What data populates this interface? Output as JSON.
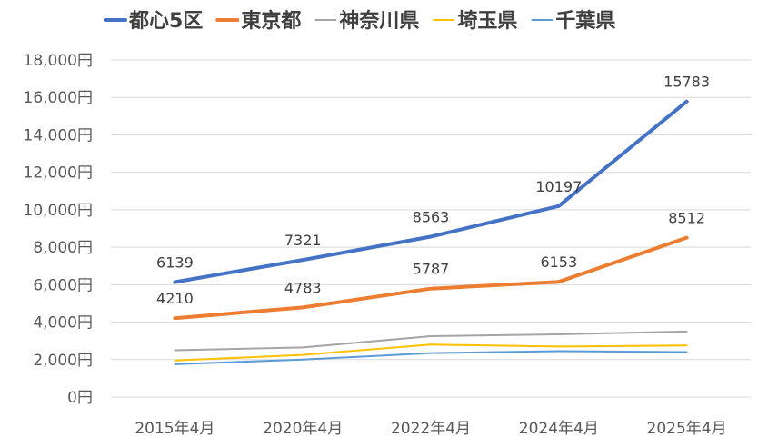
{
  "chart_data": {
    "type": "line",
    "categories": [
      "2015年4月",
      "2020年4月",
      "2022年4月",
      "2024年4月",
      "2025年4月"
    ],
    "ylim": [
      0,
      18000
    ],
    "y_ticks": [
      {
        "value": 0,
        "label": "0円"
      },
      {
        "value": 2000,
        "label": "2,000円"
      },
      {
        "value": 4000,
        "label": "4,000円"
      },
      {
        "value": 6000,
        "label": "6,000円"
      },
      {
        "value": 8000,
        "label": "8,000円"
      },
      {
        "value": 10000,
        "label": "10,000円"
      },
      {
        "value": 12000,
        "label": "12,000円"
      },
      {
        "value": 14000,
        "label": "14,000円"
      },
      {
        "value": 16000,
        "label": "16,000円"
      },
      {
        "value": 18000,
        "label": "18,000円"
      }
    ],
    "grid": true,
    "legend_position": "top",
    "series": [
      {
        "name": "都心5区",
        "color": "#4472c4",
        "bold": true,
        "labels": true,
        "label_position": "above",
        "values": [
          6139,
          7321,
          8563,
          10197,
          15783
        ]
      },
      {
        "name": "東京都",
        "color": "#ed7d31",
        "bold": true,
        "labels": true,
        "label_position": "above",
        "values": [
          4210,
          4783,
          5787,
          6153,
          8512
        ]
      },
      {
        "name": "神奈川県",
        "color": "#a5a5a5",
        "bold": false,
        "labels": false,
        "values": [
          2500,
          2650,
          3250,
          3350,
          3500
        ]
      },
      {
        "name": "埼玉県",
        "color": "#ffc000",
        "bold": false,
        "labels": false,
        "values": [
          1950,
          2250,
          2800,
          2700,
          2750
        ]
      },
      {
        "name": "千葉県",
        "color": "#5b9bd5",
        "bold": false,
        "labels": false,
        "values": [
          1750,
          2000,
          2350,
          2450,
          2400
        ]
      }
    ]
  }
}
